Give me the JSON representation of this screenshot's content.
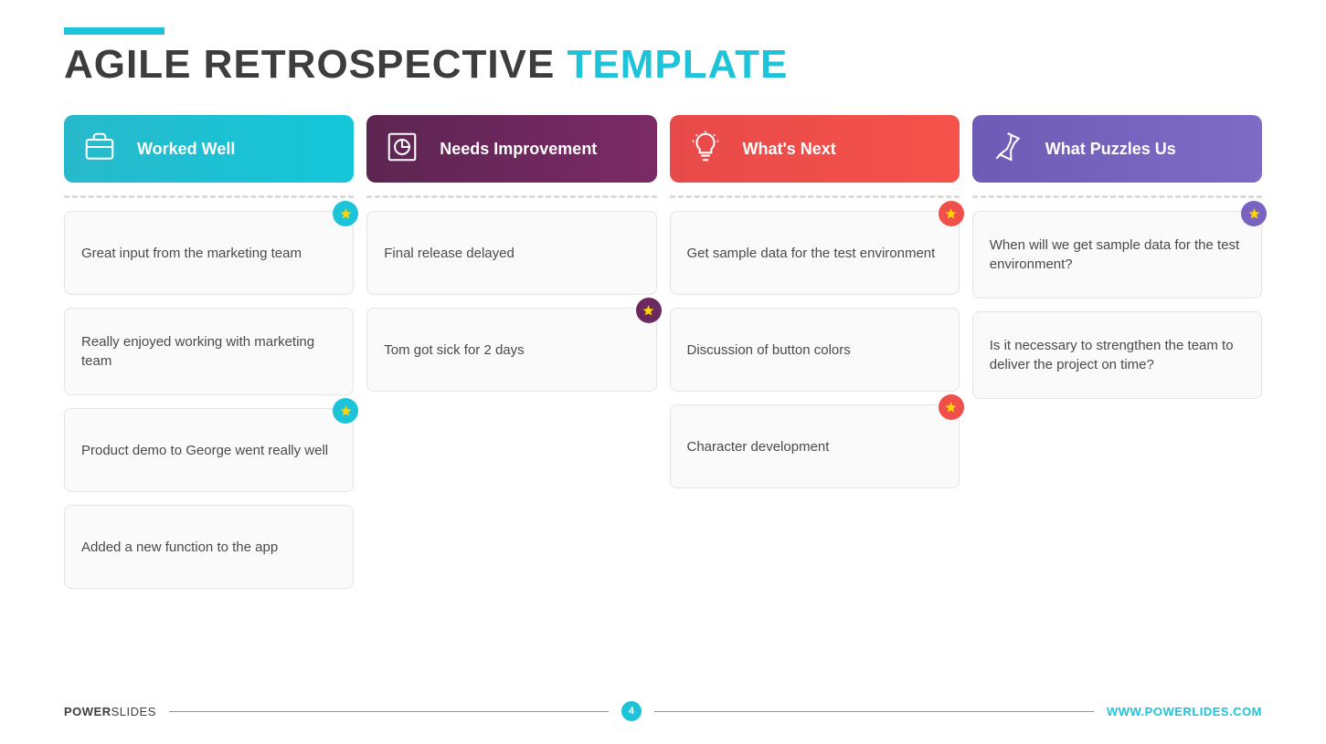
{
  "title": {
    "part1": "AGILE RETROSPECTIVE ",
    "part2": "TEMPLATE"
  },
  "accent_color": "#1dc3d8",
  "columns": [
    {
      "label": "Worked Well",
      "header_bg": "linear-gradient(90deg,#27b9cb,#13c7d9)",
      "badge_color": "#1dc3d8",
      "icon": "briefcase",
      "cards": [
        {
          "text": "Great input from the marketing team",
          "starred": true
        },
        {
          "text": "Really enjoyed working with marketing team",
          "starred": false
        },
        {
          "text": "Product demo to George went really well",
          "starred": true
        },
        {
          "text": "Added a new function to the app",
          "starred": false
        }
      ]
    },
    {
      "label": "Needs Improvement",
      "header_bg": "linear-gradient(90deg,#5d2552,#7b2a66)",
      "badge_color": "#6b2a5f",
      "icon": "chart",
      "cards": [
        {
          "text": "Final release delayed",
          "starred": false
        },
        {
          "text": "Tom got sick for 2 days",
          "starred": true
        }
      ]
    },
    {
      "label": "What's Next",
      "header_bg": "linear-gradient(90deg,#e84a4a,#f5524a)",
      "badge_color": "#f0504b",
      "icon": "lightbulb",
      "cards": [
        {
          "text": "Get sample data for the test environment",
          "starred": true
        },
        {
          "text": "Discussion of button colors",
          "starred": false
        },
        {
          "text": "Character development",
          "starred": true
        }
      ]
    },
    {
      "label": "What Puzzles Us",
      "header_bg": "linear-gradient(90deg,#6d5bb5,#7e6bc5)",
      "badge_color": "#7863c0",
      "icon": "pin",
      "cards": [
        {
          "text": "When will we get sample data for the test environment?",
          "starred": true
        },
        {
          "text": "Is it necessary to strengthen the team to deliver the project on time?",
          "starred": false
        }
      ]
    }
  ],
  "footer": {
    "brand_bold": "POWER",
    "brand_light": "SLIDES",
    "page": "4",
    "url": "WWW.POWERLIDES.COM"
  },
  "star_fill": "#ffd400"
}
